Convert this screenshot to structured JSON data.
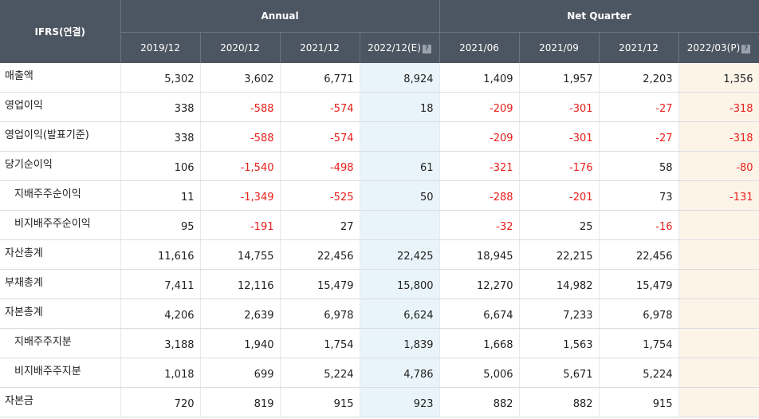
{
  "header": {
    "corner_label": "IFRS(연결)",
    "annual_label": "Annual",
    "quarter_label": "Net Quarter",
    "periods": [
      "2019/12",
      "2020/12",
      "2021/12",
      "2022/12(E)",
      "2021/06",
      "2021/09",
      "2021/12",
      "2022/03(P)"
    ],
    "help_glyph": "?"
  },
  "rows": [
    {
      "label": "매출액",
      "sub": false,
      "values": [
        "5,302",
        "3,602",
        "6,771",
        "8,924",
        "1,409",
        "1,957",
        "2,203",
        "1,356"
      ]
    },
    {
      "label": "영업이익",
      "sub": false,
      "values": [
        "338",
        "-588",
        "-574",
        "18",
        "-209",
        "-301",
        "-27",
        "-318"
      ]
    },
    {
      "label": "영업이익(발표기준)",
      "sub": false,
      "values": [
        "338",
        "-588",
        "-574",
        "",
        "-209",
        "-301",
        "-27",
        "-318"
      ]
    },
    {
      "label": "당기순이익",
      "sub": false,
      "values": [
        "106",
        "-1,540",
        "-498",
        "61",
        "-321",
        "-176",
        "58",
        "-80"
      ]
    },
    {
      "label": "지배주주순이익",
      "sub": true,
      "values": [
        "11",
        "-1,349",
        "-525",
        "50",
        "-288",
        "-201",
        "73",
        "-131"
      ]
    },
    {
      "label": "비지배주주순이익",
      "sub": true,
      "values": [
        "95",
        "-191",
        "27",
        "",
        "-32",
        "25",
        "-16",
        ""
      ]
    },
    {
      "label": "자산총계",
      "sub": false,
      "values": [
        "11,616",
        "14,755",
        "22,456",
        "22,425",
        "18,945",
        "22,215",
        "22,456",
        ""
      ]
    },
    {
      "label": "부채총계",
      "sub": false,
      "values": [
        "7,411",
        "12,116",
        "15,479",
        "15,800",
        "12,270",
        "14,982",
        "15,479",
        ""
      ]
    },
    {
      "label": "자본총계",
      "sub": false,
      "values": [
        "4,206",
        "2,639",
        "6,978",
        "6,624",
        "6,674",
        "7,233",
        "6,978",
        ""
      ]
    },
    {
      "label": "지배주주지분",
      "sub": true,
      "values": [
        "3,188",
        "1,940",
        "1,754",
        "1,839",
        "1,668",
        "1,563",
        "1,754",
        ""
      ]
    },
    {
      "label": "비지배주주지분",
      "sub": true,
      "values": [
        "1,018",
        "699",
        "5,224",
        "4,786",
        "5,006",
        "5,671",
        "5,224",
        ""
      ]
    },
    {
      "label": "자본금",
      "sub": false,
      "values": [
        "720",
        "819",
        "915",
        "923",
        "882",
        "882",
        "915",
        ""
      ]
    }
  ],
  "colors": {
    "header_bg": "#4c5662",
    "estimate_bg": "#e9f4fa",
    "latest_bg": "#fdf4e8",
    "negative": "#e8201b"
  }
}
